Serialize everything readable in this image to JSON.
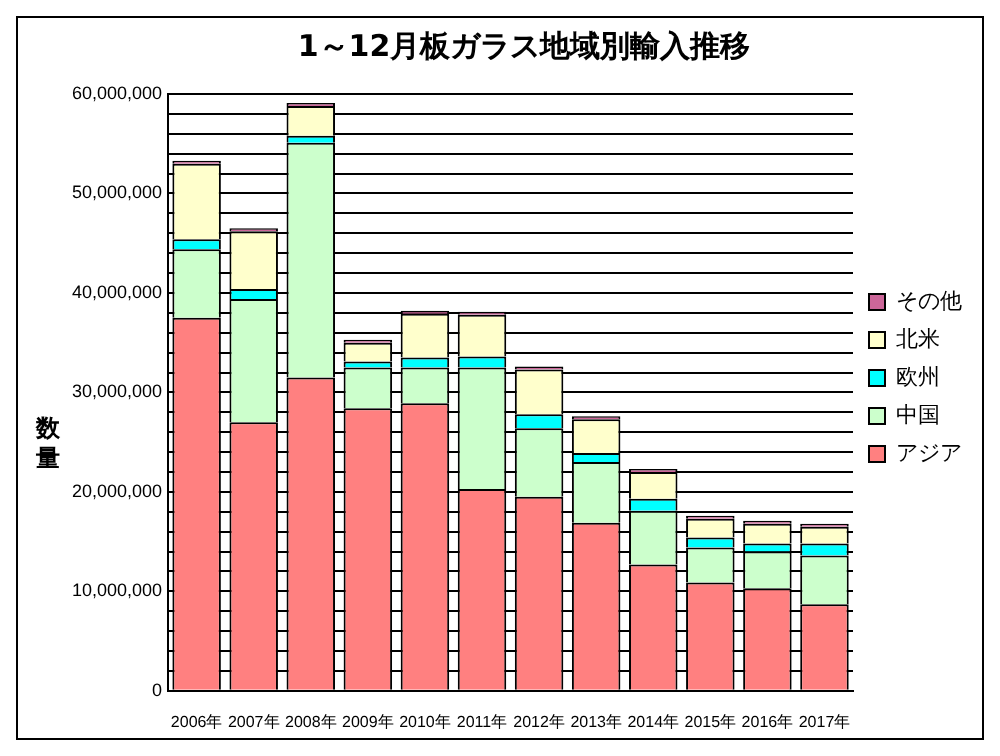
{
  "chart_data": {
    "type": "bar",
    "title": "1～12月板ガラス地域別輸入推移",
    "ylabel": "数量",
    "stacked": true,
    "grid": "y",
    "legend": "right",
    "categories": [
      "2006年",
      "2007年",
      "2008年",
      "2009年",
      "2010年",
      "2011年",
      "2012年",
      "2013年",
      "2014年",
      "2015年",
      "2016年",
      "2017年"
    ],
    "ylim": [
      0,
      60000000
    ],
    "yticks": [
      0,
      {
        "value": 2000000,
        "label": null
      },
      {
        "value": 4000000,
        "label": null
      },
      {
        "value": 6000000,
        "label": null
      },
      {
        "value": 8000000,
        "label": null
      },
      {
        "value": 10000000,
        "label": "10,000,000"
      },
      {
        "value": 12000000,
        "label": null
      },
      {
        "value": 14000000,
        "label": null
      },
      {
        "value": 16000000,
        "label": null
      },
      {
        "value": 18000000,
        "label": null
      },
      {
        "value": 20000000,
        "label": "20,000,000"
      },
      {
        "value": 22000000,
        "label": null
      },
      {
        "value": 24000000,
        "label": null
      },
      {
        "value": 26000000,
        "label": null
      },
      {
        "value": 28000000,
        "label": null
      },
      {
        "value": 30000000,
        "label": "30,000,000"
      },
      {
        "value": 32000000,
        "label": null
      },
      {
        "value": 34000000,
        "label": null
      },
      {
        "value": 36000000,
        "label": null
      },
      {
        "value": 38000000,
        "label": null
      },
      {
        "value": 40000000,
        "label": "40,000,000"
      },
      {
        "value": 42000000,
        "label": null
      },
      {
        "value": 44000000,
        "label": null
      },
      {
        "value": 46000000,
        "label": null
      },
      {
        "value": 48000000,
        "label": null
      },
      {
        "value": 50000000,
        "label": "50,000,000"
      },
      {
        "value": 52000000,
        "label": null
      },
      {
        "value": 54000000,
        "label": null
      },
      {
        "value": 56000000,
        "label": null
      },
      {
        "value": 58000000,
        "label": null
      },
      {
        "value": 60000000,
        "label": "60,000,000"
      }
    ],
    "series": [
      {
        "name": "アジア",
        "color": "#ff8080",
        "values": [
          37500000,
          27000000,
          31500000,
          28400000,
          28900000,
          20300000,
          19500000,
          16900000,
          12700000,
          10900000,
          10300000,
          8700000
        ]
      },
      {
        "name": "中国",
        "color": "#ccffcc",
        "values": [
          6900000,
          12400000,
          23600000,
          4100000,
          3600000,
          12200000,
          6900000,
          6100000,
          5400000,
          3500000,
          3700000,
          4900000
        ]
      },
      {
        "name": "欧州",
        "color": "#00ffff",
        "values": [
          1000000,
          1000000,
          700000,
          600000,
          1000000,
          1100000,
          1400000,
          900000,
          1200000,
          1000000,
          800000,
          1200000
        ]
      },
      {
        "name": "北米",
        "color": "#ffffcc",
        "values": [
          7600000,
          5800000,
          3000000,
          1900000,
          4400000,
          4200000,
          4500000,
          3400000,
          2700000,
          1900000,
          2000000,
          1700000
        ]
      },
      {
        "name": "その他",
        "color": "#cc6699",
        "values": [
          300000,
          300000,
          300000,
          300000,
          300000,
          300000,
          300000,
          300000,
          300000,
          300000,
          300000,
          300000
        ]
      }
    ]
  }
}
